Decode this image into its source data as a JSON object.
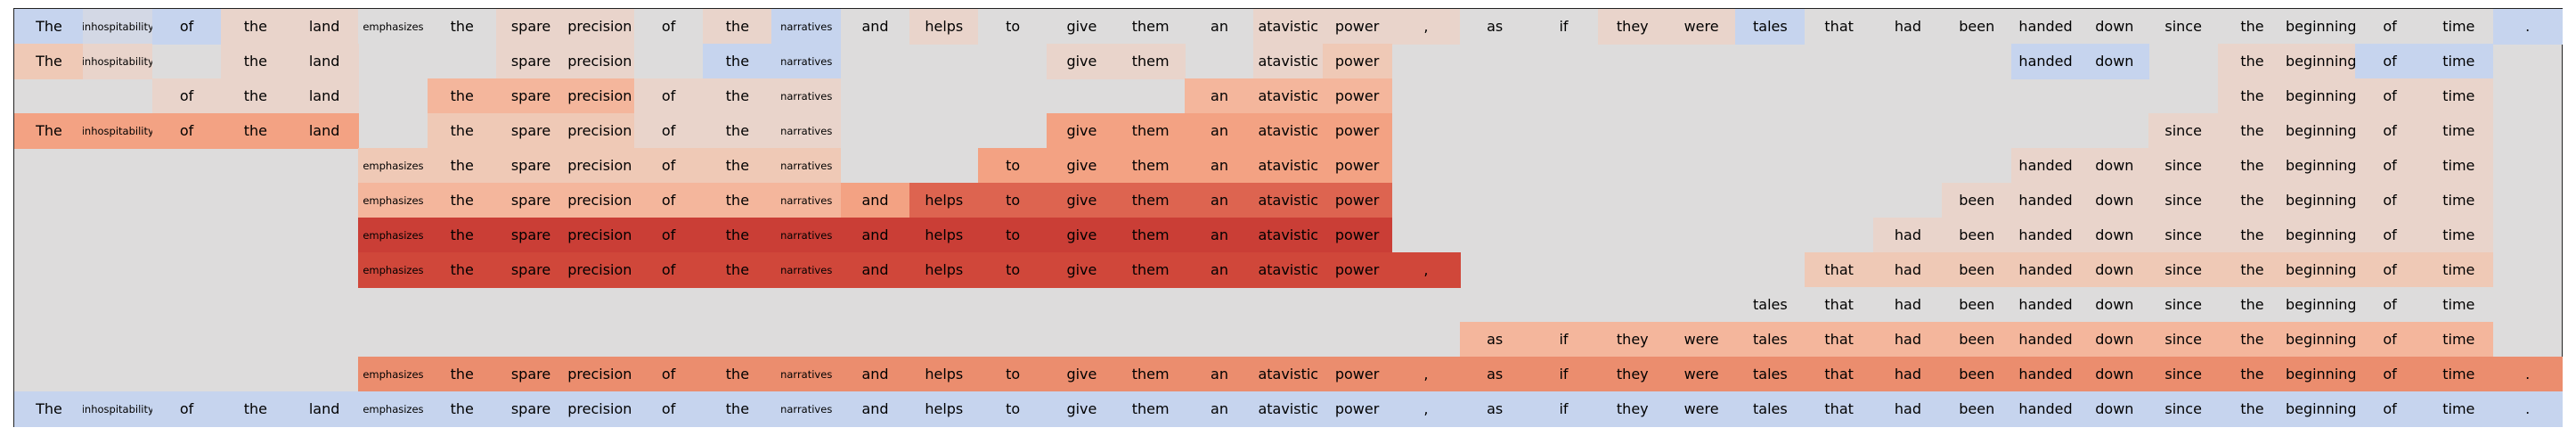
{
  "chart_data": {
    "type": "heatmap",
    "tokens": [
      "The",
      "inhospitability",
      "of",
      "the",
      "land",
      "emphasizes",
      "the",
      "spare",
      "precision",
      "of",
      "the",
      "narratives",
      "and",
      "helps",
      "to",
      "give",
      "them",
      "an",
      "atavistic",
      "power",
      ",",
      "as",
      "if",
      "they",
      "were",
      "tales",
      "that",
      "had",
      "been",
      "handed",
      "down",
      "since",
      "the",
      "beginning",
      "of",
      "time",
      "."
    ],
    "colors": {
      "blank": "#dddcdc",
      "blue": "#c6d4ee",
      "blue_light": "#d3d8e5",
      "peach1": "#e9d4cb",
      "peach2": "#efc9b6",
      "peach3": "#f4b69c",
      "salmon": "#f3a283",
      "salmon_dark": "#eb8d6e",
      "red1": "#dd6450",
      "red2": "#d0473a",
      "red3": "#ca3e36",
      "gray": "#dddcdc"
    },
    "rows": [
      {
        "t": [
          0,
          1,
          2,
          3,
          4,
          5,
          6,
          7,
          8,
          9,
          10,
          11,
          12,
          13,
          14,
          15,
          16,
          17,
          18,
          19,
          20,
          21,
          22,
          23,
          24,
          25,
          26,
          27,
          28,
          29,
          30,
          31,
          32,
          33,
          34,
          35,
          36
        ],
        "c": [
          "blue",
          "blue_light",
          "blue",
          "peach1",
          "peach1",
          "gray",
          "gray",
          "peach1",
          "peach1",
          "gray",
          "peach1",
          "blue",
          "gray",
          "peach1",
          "gray",
          "gray",
          "gray",
          "gray",
          "peach1",
          "peach1",
          "peach1",
          "gray",
          "gray",
          "peach1",
          "peach1",
          "blue",
          "gray",
          "gray",
          "gray",
          "gray",
          "gray",
          "gray",
          "gray",
          "gray",
          "gray",
          "gray",
          "blue"
        ]
      },
      {
        "t": [
          0,
          1,
          3,
          4,
          7,
          8,
          10,
          11,
          15,
          16,
          18,
          19,
          29,
          30,
          32,
          33,
          34,
          35
        ],
        "c": [
          "peach2",
          "peach1",
          "peach1",
          "peach1",
          "peach1",
          "peach1",
          "blue",
          "blue",
          "peach1",
          "peach1",
          "peach1",
          "peach2",
          "blue",
          "blue",
          "peach1",
          "peach1",
          "blue",
          "blue"
        ]
      },
      {
        "t": [
          2,
          3,
          4,
          6,
          7,
          8,
          9,
          10,
          11,
          17,
          18,
          19,
          32,
          33,
          34,
          35
        ],
        "c": [
          "peach1",
          "peach1",
          "peach1",
          "peach3",
          "peach3",
          "peach3",
          "peach1",
          "peach1",
          "peach1",
          "peach3",
          "peach3",
          "peach3",
          "peach1",
          "peach1",
          "peach1",
          "peach1"
        ]
      },
      {
        "t": [
          0,
          1,
          2,
          3,
          4,
          6,
          7,
          8,
          9,
          10,
          11,
          15,
          16,
          17,
          18,
          19,
          31,
          32,
          33,
          34,
          35
        ],
        "c": [
          "salmon",
          "salmon",
          "salmon",
          "salmon",
          "salmon",
          "peach2",
          "peach2",
          "peach2",
          "peach1",
          "peach1",
          "peach1",
          "salmon",
          "salmon",
          "salmon",
          "salmon",
          "salmon",
          "peach1",
          "peach1",
          "peach1",
          "peach1",
          "peach1"
        ]
      },
      {
        "t": [
          5,
          6,
          7,
          8,
          9,
          10,
          11,
          14,
          15,
          16,
          17,
          18,
          19,
          29,
          30,
          31,
          32,
          33,
          34,
          35
        ],
        "c": [
          "peach2",
          "peach2",
          "peach2",
          "peach2",
          "peach2",
          "peach2",
          "peach2",
          "salmon",
          "salmon",
          "salmon",
          "salmon",
          "salmon",
          "salmon",
          "peach1",
          "peach1",
          "peach1",
          "peach1",
          "peach1",
          "peach1",
          "peach1"
        ]
      },
      {
        "t": [
          5,
          6,
          7,
          8,
          9,
          10,
          11,
          12,
          13,
          14,
          15,
          16,
          17,
          18,
          19,
          28,
          29,
          30,
          31,
          32,
          33,
          34,
          35
        ],
        "c": [
          "peach3",
          "peach3",
          "peach3",
          "peach3",
          "peach3",
          "peach3",
          "peach3",
          "salmon",
          "red1",
          "red1",
          "red1",
          "red1",
          "red1",
          "red1",
          "red1",
          "peach1",
          "peach1",
          "peach1",
          "peach1",
          "peach1",
          "peach1",
          "peach1",
          "peach1"
        ]
      },
      {
        "t": [
          5,
          6,
          7,
          8,
          9,
          10,
          11,
          12,
          13,
          14,
          15,
          16,
          17,
          18,
          19,
          27,
          28,
          29,
          30,
          31,
          32,
          33,
          34,
          35
        ],
        "c": [
          "red3",
          "red3",
          "red3",
          "red3",
          "red3",
          "red3",
          "red3",
          "red3",
          "red3",
          "red3",
          "red3",
          "red3",
          "red3",
          "red3",
          "red3",
          "peach1",
          "peach1",
          "peach1",
          "peach1",
          "peach1",
          "peach1",
          "peach1",
          "peach1",
          "peach1"
        ]
      },
      {
        "t": [
          5,
          6,
          7,
          8,
          9,
          10,
          11,
          12,
          13,
          14,
          15,
          16,
          17,
          18,
          19,
          20,
          26,
          27,
          28,
          29,
          30,
          31,
          32,
          33,
          34,
          35
        ],
        "c": [
          "red2",
          "red2",
          "red2",
          "red2",
          "red2",
          "red2",
          "red2",
          "red2",
          "red2",
          "red2",
          "red2",
          "red2",
          "red2",
          "red2",
          "red2",
          "red2",
          "peach2",
          "peach2",
          "peach2",
          "peach2",
          "peach2",
          "peach2",
          "peach2",
          "peach2",
          "peach2",
          "peach2"
        ]
      },
      {
        "t": [
          25,
          26,
          27,
          28,
          29,
          30,
          31,
          32,
          33,
          34,
          35
        ],
        "c": [
          "gray",
          "gray",
          "gray",
          "gray",
          "gray",
          "gray",
          "gray",
          "gray",
          "gray",
          "gray",
          "gray"
        ]
      },
      {
        "t": [
          21,
          22,
          23,
          24,
          25,
          26,
          27,
          28,
          29,
          30,
          31,
          32,
          33,
          34,
          35
        ],
        "c": [
          "peach3",
          "peach3",
          "peach3",
          "peach3",
          "peach3",
          "peach3",
          "peach3",
          "peach3",
          "peach3",
          "peach3",
          "peach3",
          "peach3",
          "peach3",
          "peach3",
          "peach3"
        ]
      },
      {
        "t": [
          5,
          6,
          7,
          8,
          9,
          10,
          11,
          12,
          13,
          14,
          15,
          16,
          17,
          18,
          19,
          20,
          21,
          22,
          23,
          24,
          25,
          26,
          27,
          28,
          29,
          30,
          31,
          32,
          33,
          34,
          35,
          36
        ],
        "c": [
          "salmon_dark",
          "salmon_dark",
          "salmon_dark",
          "salmon_dark",
          "salmon_dark",
          "salmon_dark",
          "salmon_dark",
          "salmon_dark",
          "salmon_dark",
          "salmon_dark",
          "salmon_dark",
          "salmon_dark",
          "salmon_dark",
          "salmon_dark",
          "salmon_dark",
          "salmon_dark",
          "salmon_dark",
          "salmon_dark",
          "salmon_dark",
          "salmon_dark",
          "salmon_dark",
          "salmon_dark",
          "salmon_dark",
          "salmon_dark",
          "salmon_dark",
          "salmon_dark",
          "salmon_dark",
          "salmon_dark",
          "salmon_dark",
          "salmon_dark",
          "salmon_dark",
          "salmon_dark"
        ]
      },
      {
        "t": [
          0,
          1,
          2,
          3,
          4,
          5,
          6,
          7,
          8,
          9,
          10,
          11,
          12,
          13,
          14,
          15,
          16,
          17,
          18,
          19,
          20,
          21,
          22,
          23,
          24,
          25,
          26,
          27,
          28,
          29,
          30,
          31,
          32,
          33,
          34,
          35,
          36
        ],
        "c": [
          "blue",
          "blue",
          "blue",
          "blue",
          "blue",
          "blue",
          "blue",
          "blue",
          "blue",
          "blue",
          "blue",
          "blue",
          "blue",
          "blue",
          "blue",
          "blue",
          "blue",
          "blue",
          "blue",
          "blue",
          "blue",
          "blue",
          "blue",
          "blue",
          "blue",
          "blue",
          "blue",
          "blue",
          "blue",
          "blue",
          "blue",
          "blue",
          "blue",
          "blue",
          "blue",
          "blue",
          "blue"
        ]
      }
    ]
  }
}
